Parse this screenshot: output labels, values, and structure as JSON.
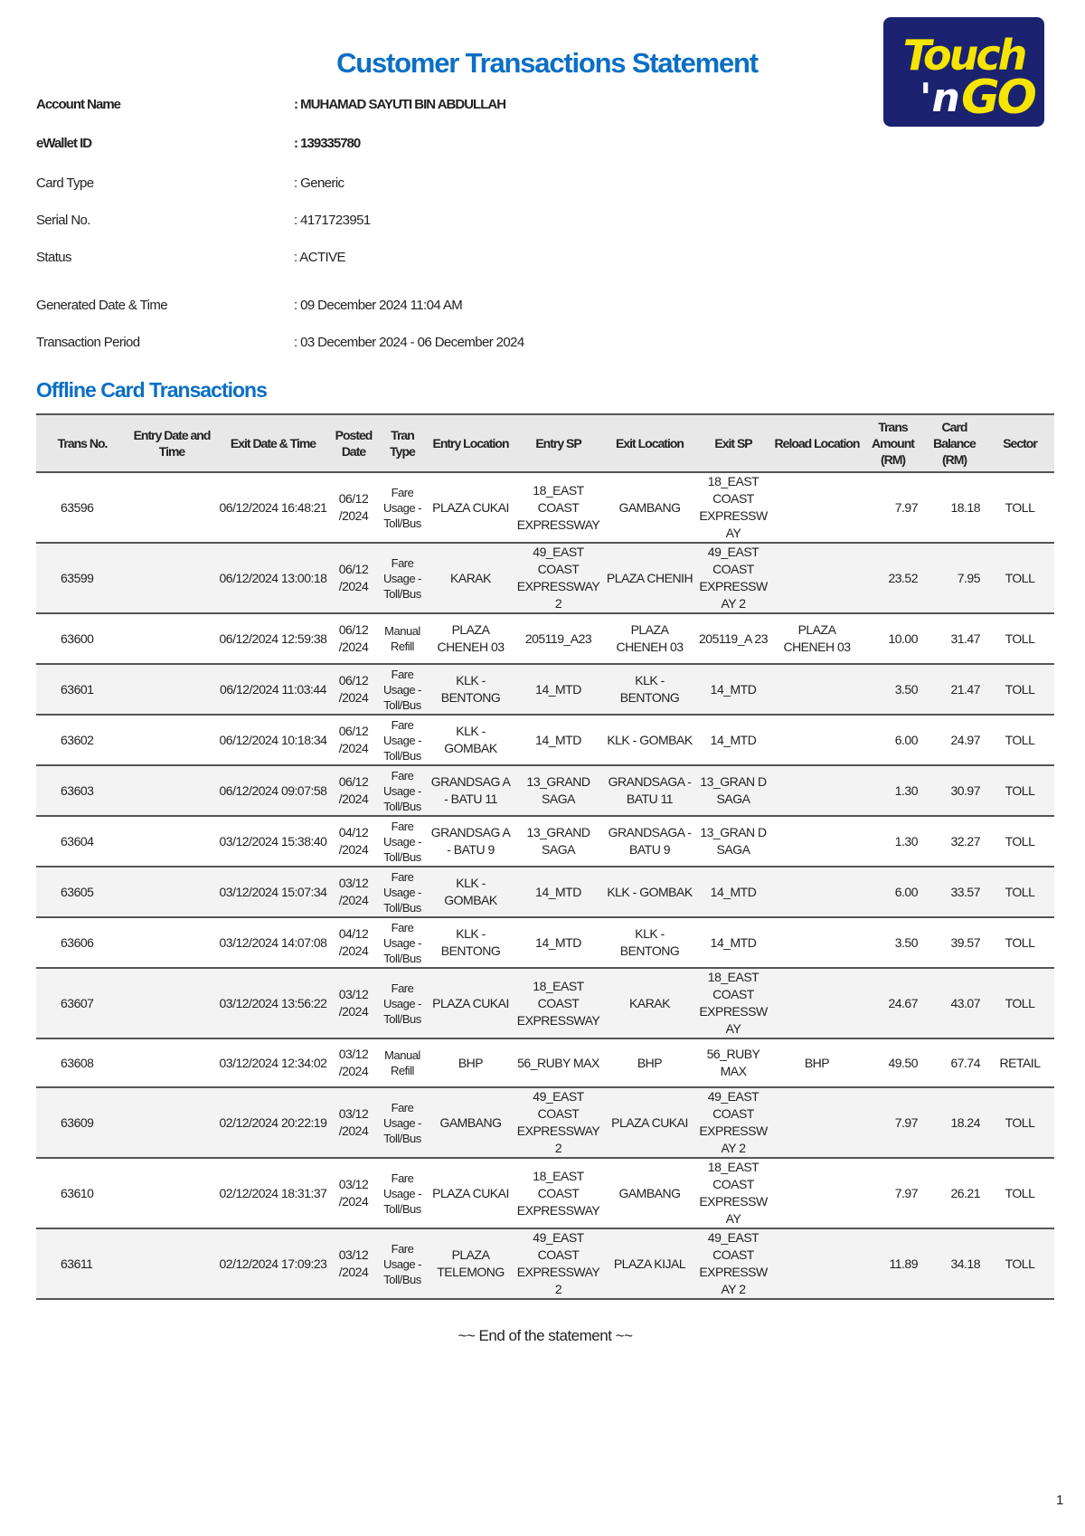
{
  "title": "Customer Transactions Statement",
  "logo": {
    "text_top": "Touch",
    "text_bottom": "'nGO",
    "colors": {
      "background": "#1b2270",
      "yellow": "#f5e500",
      "white": "#ffffff"
    }
  },
  "account": [
    {
      "label": "Account Name",
      "value": ": MUHAMAD SAYUTI BIN ABDULLAH"
    },
    {
      "label": "eWallet ID",
      "value": ": 139335780"
    },
    {
      "label": "Card Type",
      "value": ": Generic"
    },
    {
      "label": "Serial No.",
      "value": ": 4171723951"
    },
    {
      "label": "Status",
      "value": ": ACTIVE"
    },
    {
      "label": "Generated Date & Time",
      "value": ": 09 December 2024 11:04 AM"
    },
    {
      "label": "Transaction Period",
      "value": ": 03 December 2024 - 06 December 2024"
    }
  ],
  "section_title": "Offline Card Transactions",
  "columns": [
    "Trans No.",
    "Entry Date and Time",
    "Exit Date & Time",
    "Posted Date",
    "Tran Type",
    "Entry Location",
    "Entry SP",
    "Exit Location",
    "Exit SP",
    "Reload Location",
    "Trans Amount (RM)",
    "Card Balance (RM)",
    "Sector"
  ],
  "rows": [
    [
      "63596",
      "",
      "06/12/2024 16:48:21",
      "06/12 /2024",
      "Fare Usage - Toll/Bus",
      "PLAZA CUKAI",
      "18_EAST COAST EXPRESSWAY",
      "GAMBANG",
      "18_EAST COAST EXPRESSW AY",
      "",
      "7.97",
      "18.18",
      "TOLL"
    ],
    [
      "63599",
      "",
      "06/12/2024 13:00:18",
      "06/12 /2024",
      "Fare Usage - Toll/Bus",
      "KARAK",
      "49_EAST COAST EXPRESSWAY 2",
      "PLAZA CHENIH",
      "49_EAST COAST EXPRESSW AY 2",
      "",
      "23.52",
      "7.95",
      "TOLL"
    ],
    [
      "63600",
      "",
      "06/12/2024 12:59:38",
      "06/12 /2024",
      "Manual Refill",
      "PLAZA CHENEH 03",
      "205119_A23",
      "PLAZA CHENEH 03",
      "205119_A 23",
      "PLAZA CHENEH 03",
      "10.00",
      "31.47",
      "TOLL"
    ],
    [
      "63601",
      "",
      "06/12/2024 11:03:44",
      "06/12 /2024",
      "Fare Usage - Toll/Bus",
      "KLK - BENTONG",
      "14_MTD",
      "KLK - BENTONG",
      "14_MTD",
      "",
      "3.50",
      "21.47",
      "TOLL"
    ],
    [
      "63602",
      "",
      "06/12/2024 10:18:34",
      "06/12 /2024",
      "Fare Usage - Toll/Bus",
      "KLK - GOMBAK",
      "14_MTD",
      "KLK - GOMBAK",
      "14_MTD",
      "",
      "6.00",
      "24.97",
      "TOLL"
    ],
    [
      "63603",
      "",
      "06/12/2024 09:07:58",
      "06/12 /2024",
      "Fare Usage - Toll/Bus",
      "GRANDSAG A - BATU 11",
      "13_GRAND SAGA",
      "GRANDSAGA - BATU 11",
      "13_GRAN D SAGA",
      "",
      "1.30",
      "30.97",
      "TOLL"
    ],
    [
      "63604",
      "",
      "03/12/2024 15:38:40",
      "04/12 /2024",
      "Fare Usage - Toll/Bus",
      "GRANDSAG A - BATU 9",
      "13_GRAND SAGA",
      "GRANDSAGA - BATU 9",
      "13_GRAN D SAGA",
      "",
      "1.30",
      "32.27",
      "TOLL"
    ],
    [
      "63605",
      "",
      "03/12/2024 15:07:34",
      "03/12 /2024",
      "Fare Usage - Toll/Bus",
      "KLK - GOMBAK",
      "14_MTD",
      "KLK - GOMBAK",
      "14_MTD",
      "",
      "6.00",
      "33.57",
      "TOLL"
    ],
    [
      "63606",
      "",
      "03/12/2024 14:07:08",
      "04/12 /2024",
      "Fare Usage - Toll/Bus",
      "KLK - BENTONG",
      "14_MTD",
      "KLK - BENTONG",
      "14_MTD",
      "",
      "3.50",
      "39.57",
      "TOLL"
    ],
    [
      "63607",
      "",
      "03/12/2024 13:56:22",
      "03/12 /2024",
      "Fare Usage - Toll/Bus",
      "PLAZA CUKAI",
      "18_EAST COAST EXPRESSWAY",
      "KARAK",
      "18_EAST COAST EXPRESSW AY",
      "",
      "24.67",
      "43.07",
      "TOLL"
    ],
    [
      "63608",
      "",
      "03/12/2024 12:34:02",
      "03/12 /2024",
      "Manual Refill",
      "BHP",
      "56_RUBY MAX",
      "BHP",
      "56_RUBY MAX",
      "BHP",
      "49.50",
      "67.74",
      "RETAIL"
    ],
    [
      "63609",
      "",
      "02/12/2024 20:22:19",
      "03/12 /2024",
      "Fare Usage - Toll/Bus",
      "GAMBANG",
      "49_EAST COAST EXPRESSWAY 2",
      "PLAZA CUKAI",
      "49_EAST COAST EXPRESSW AY 2",
      "",
      "7.97",
      "18.24",
      "TOLL"
    ],
    [
      "63610",
      "",
      "02/12/2024 18:31:37",
      "03/12 /2024",
      "Fare Usage - Toll/Bus",
      "PLAZA CUKAI",
      "18_EAST COAST EXPRESSWAY",
      "GAMBANG",
      "18_EAST COAST EXPRESSW AY",
      "",
      "7.97",
      "26.21",
      "TOLL"
    ],
    [
      "63611",
      "",
      "02/12/2024 17:09:23",
      "03/12 /2024",
      "Fare Usage - Toll/Bus",
      "PLAZA TELEMONG",
      "49_EAST COAST EXPRESSWAY 2",
      "PLAZA KIJAL",
      "49_EAST COAST EXPRESSW AY 2",
      "",
      "11.89",
      "34.18",
      "TOLL"
    ]
  ],
  "footer": "~~ End of the statement ~~",
  "page_number": "1"
}
